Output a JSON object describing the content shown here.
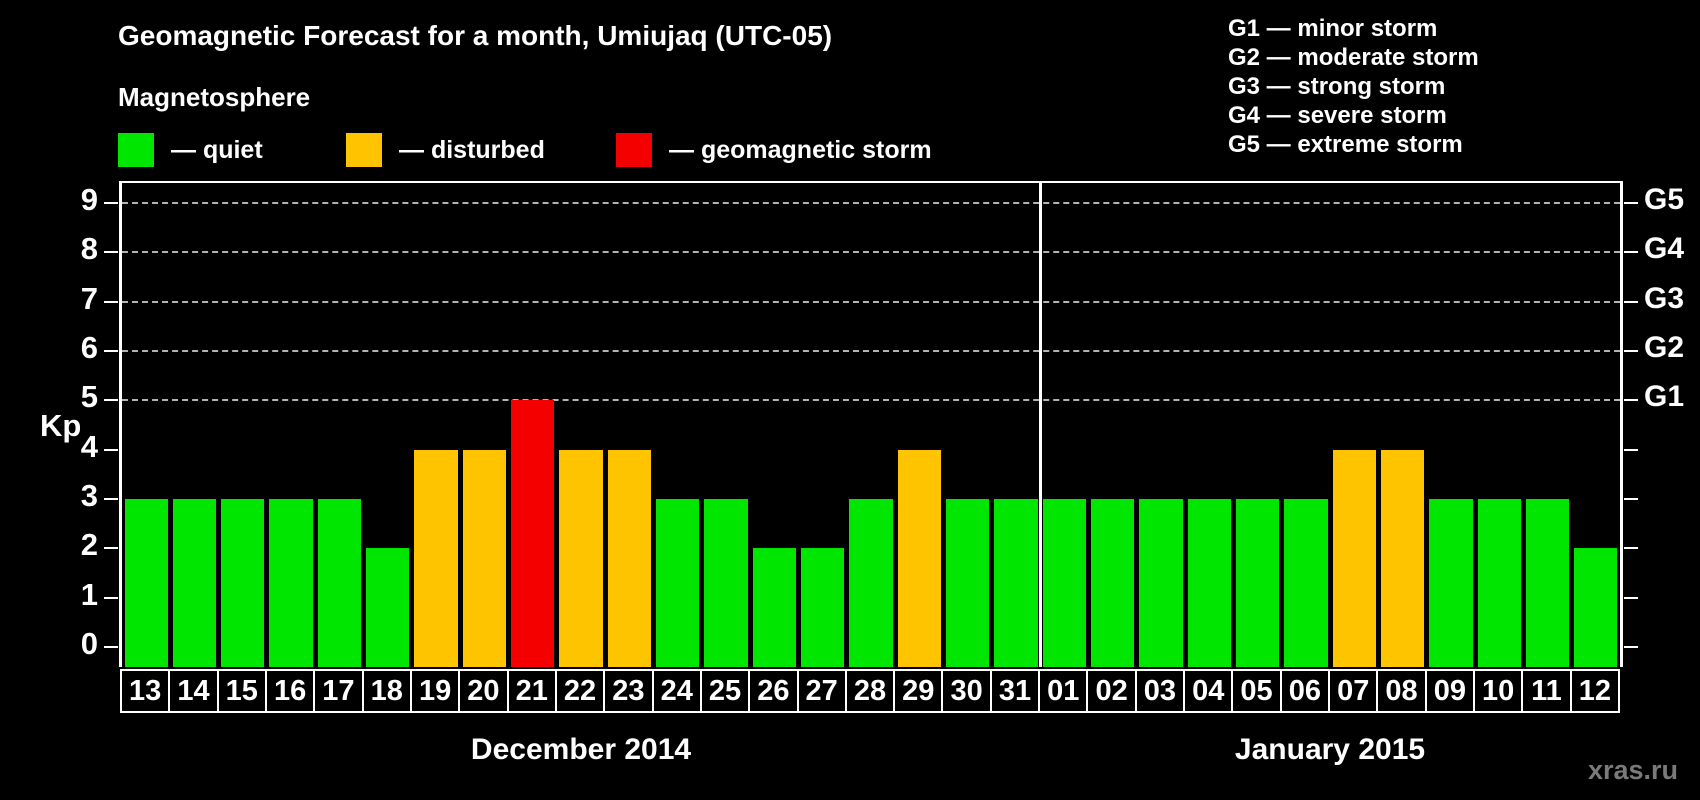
{
  "title": "Geomagnetic Forecast for a month, Umiujaq (UTC-05)",
  "subtitle": "Magnetosphere",
  "legend": {
    "items": [
      {
        "name": "quiet",
        "label": "— quiet",
        "color": "#00e600"
      },
      {
        "name": "disturbed",
        "label": "— disturbed",
        "color": "#ffc400"
      },
      {
        "name": "geomagnetic-storm",
        "label": "— geomagnetic storm",
        "color": "#f40000"
      }
    ]
  },
  "g_legend": [
    "G1 — minor storm",
    "G2 — moderate storm",
    "G3 — strong storm",
    "G4 — severe storm",
    "G5 — extreme storm"
  ],
  "watermark": "xras.ru",
  "chart_data": {
    "type": "bar",
    "title": "Geomagnetic Forecast for a month, Umiujaq (UTC-05)",
    "xlabel": "",
    "ylabel": "Kp",
    "ylim": [
      -0.4,
      9.4
    ],
    "yticks": [
      0,
      1,
      2,
      3,
      4,
      5,
      6,
      7,
      8,
      9
    ],
    "gridlines_at": [
      5,
      6,
      7,
      8,
      9
    ],
    "grid": "dashed-horizontal",
    "legend_position": "top",
    "right_axis_labels": [
      {
        "kp": 5,
        "label": "G1"
      },
      {
        "kp": 6,
        "label": "G2"
      },
      {
        "kp": 7,
        "label": "G3"
      },
      {
        "kp": 8,
        "label": "G4"
      },
      {
        "kp": 9,
        "label": "G5"
      }
    ],
    "months": [
      {
        "label": "December 2014",
        "days": 19
      },
      {
        "label": "January 2015",
        "days": 12
      }
    ],
    "categories": [
      "13",
      "14",
      "15",
      "16",
      "17",
      "18",
      "19",
      "20",
      "21",
      "22",
      "23",
      "24",
      "25",
      "26",
      "27",
      "28",
      "29",
      "30",
      "31",
      "01",
      "02",
      "03",
      "04",
      "05",
      "06",
      "07",
      "08",
      "09",
      "10",
      "11",
      "12"
    ],
    "values": [
      3,
      3,
      3,
      3,
      3,
      2,
      4,
      4,
      5,
      4,
      4,
      3,
      3,
      2,
      2,
      3,
      4,
      3,
      3,
      3,
      3,
      3,
      3,
      3,
      3,
      4,
      4,
      3,
      3,
      3,
      2
    ],
    "statuses": [
      "quiet",
      "quiet",
      "quiet",
      "quiet",
      "quiet",
      "quiet",
      "disturbed",
      "disturbed",
      "storm",
      "disturbed",
      "disturbed",
      "quiet",
      "quiet",
      "quiet",
      "quiet",
      "quiet",
      "disturbed",
      "quiet",
      "quiet",
      "quiet",
      "quiet",
      "quiet",
      "quiet",
      "quiet",
      "quiet",
      "disturbed",
      "disturbed",
      "quiet",
      "quiet",
      "quiet",
      "quiet"
    ],
    "colors": {
      "quiet": "#00e600",
      "disturbed": "#ffc400",
      "storm": "#f40000"
    }
  }
}
